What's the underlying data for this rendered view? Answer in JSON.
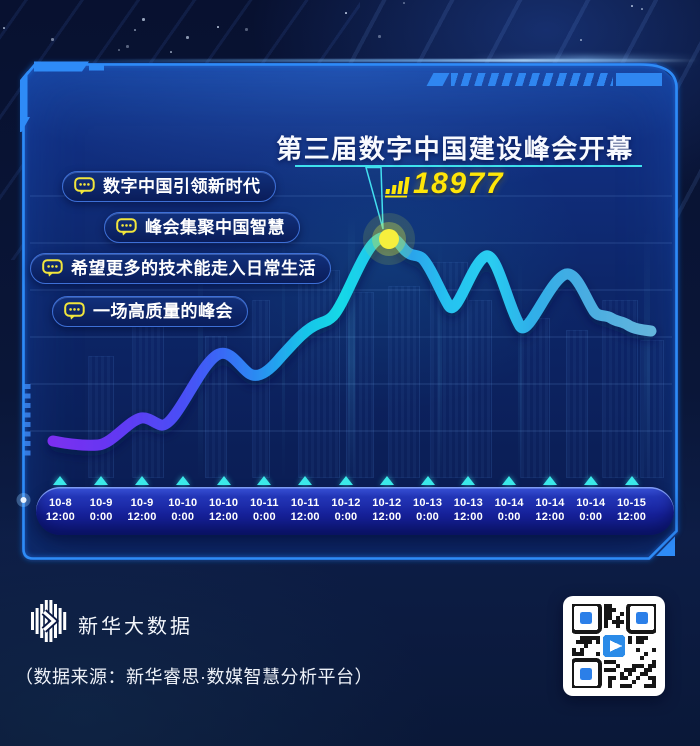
{
  "header": {
    "title": "第三届数字中国建设峰会开幕"
  },
  "peak_callout": {
    "value": "18977",
    "icon": "bar-chart-icon"
  },
  "comments": [
    {
      "label": "数字中国引领新时代"
    },
    {
      "label": "峰会集聚中国智慧"
    },
    {
      "label": "希望更多的技术能走入日常生活"
    },
    {
      "label": "一场高质量的峰会"
    }
  ],
  "x_axis": [
    {
      "date": "10-8",
      "time": "12:00"
    },
    {
      "date": "10-9",
      "time": "0:00"
    },
    {
      "date": "10-9",
      "time": "12:00"
    },
    {
      "date": "10-10",
      "time": "0:00"
    },
    {
      "date": "10-10",
      "time": "12:00"
    },
    {
      "date": "10-11",
      "time": "0:00"
    },
    {
      "date": "10-11",
      "time": "12:00"
    },
    {
      "date": "10-12",
      "time": "0:00"
    },
    {
      "date": "10-12",
      "time": "12:00"
    },
    {
      "date": "10-13",
      "time": "0:00"
    },
    {
      "date": "10-13",
      "time": "12:00"
    },
    {
      "date": "10-14",
      "time": "0:00"
    },
    {
      "date": "10-14",
      "time": "12:00"
    },
    {
      "date": "10-14",
      "time": "0:00"
    },
    {
      "date": "10-15",
      "time": "12:00"
    }
  ],
  "footer": {
    "brand": "新华大数据",
    "source": "（数据来源：新华睿思·数媒智慧分析平台）"
  },
  "colors": {
    "accent_yellow": "#FFE608",
    "accent_cyan": "#3FE2EE",
    "line_purple": "#7B2FF0",
    "line_cyan": "#17D9E7",
    "panel_border": "#2E8BF7",
    "peak_dot": "#F6EF3D"
  },
  "chart_data": {
    "type": "line",
    "title": "第三届数字中国建设峰会开幕",
    "x": [
      "10-8 12:00",
      "10-9 0:00",
      "10-9 12:00",
      "10-10 0:00",
      "10-10 12:00",
      "10-11 0:00",
      "10-11 12:00",
      "10-12 0:00",
      "10-12 12:00",
      "10-13 0:00",
      "10-13 12:00",
      "10-14 0:00",
      "10-14 12:00",
      "10-14 0:00",
      "10-15 12:00"
    ],
    "values": [
      2400,
      2100,
      4300,
      6100,
      9600,
      7900,
      10600,
      13900,
      18977,
      16400,
      15500,
      13500,
      14300,
      13500,
      11800
    ],
    "peak": {
      "x": "10-12 12:00",
      "value": 18977,
      "label": "18977"
    },
    "ylim": [
      0,
      20000
    ],
    "grid": "horizontal",
    "legend_position": "none",
    "annotations": [
      "数字中国引领新时代",
      "峰会集聚中国智慧",
      "希望更多的技术能走入日常生活",
      "一场高质量的峰会"
    ]
  }
}
